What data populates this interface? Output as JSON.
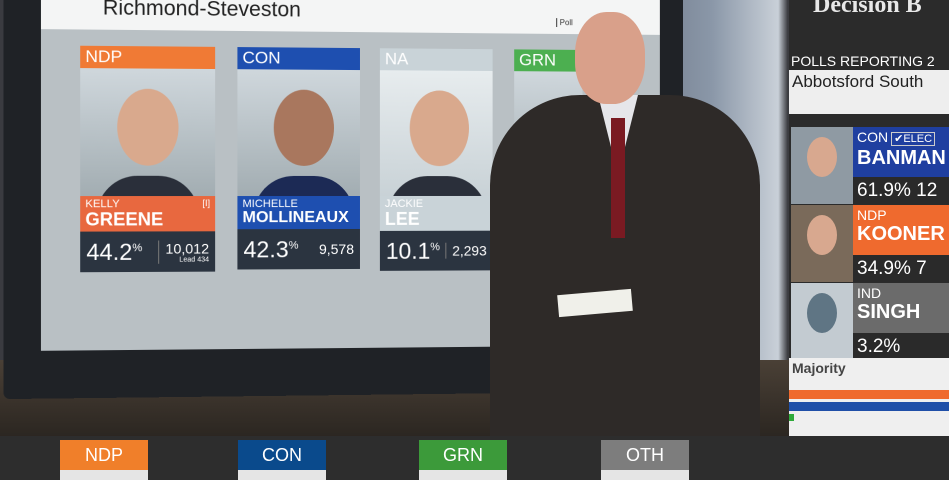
{
  "screen": {
    "riding": "Richmond-Steveston",
    "polls_label": "Poll",
    "candidates": [
      {
        "party": "NDP",
        "first": "KELLY",
        "last": "GREENE",
        "pct": "44.2",
        "votes": "10,012",
        "lead": "Lead 434",
        "incumbent": "[I]",
        "color": "#f07a35",
        "name_color": "#e8683f"
      },
      {
        "party": "CON",
        "first": "MICHELLE",
        "last": "MOLLINEAUX",
        "pct": "42.3",
        "votes": "9,578",
        "color": "#1e4fb0",
        "name_color": "#1e4fb0"
      },
      {
        "party": "NA",
        "first": "JACKIE",
        "last": "LEE",
        "pct": "10.1",
        "votes": "2,293",
        "color": "#c9d3d8",
        "name_color": "#c9d3d8"
      },
      {
        "party": "GRN",
        "color": "#4caf50"
      }
    ],
    "pct_symbol": "%"
  },
  "sidebar": {
    "title": "Decision B",
    "polls_reporting": "POLLS REPORTING   2",
    "riding": "Abbotsford South",
    "candidates": [
      {
        "party": "CON",
        "name": "BANMAN",
        "pct": "61.9%  12",
        "elected": "✔ELEC",
        "color": "#1f3fa0"
      },
      {
        "party": "NDP",
        "name": "KOONER",
        "pct": "34.9%   7",
        "color": "#ef6a2e"
      },
      {
        "party": "IND",
        "name": "SINGH",
        "pct": "3.2%",
        "color": "#6b6b6b"
      }
    ],
    "majority": "Majority",
    "bars": [
      {
        "party": "NDP",
        "color": "#ef6a2e"
      },
      {
        "party": "CON",
        "color": "#1f4fa8"
      },
      {
        "party": "GRN",
        "color": "#2faa3a"
      }
    ]
  },
  "bottom": {
    "tallies": [
      {
        "label": "NDP",
        "color": "#f07f2a"
      },
      {
        "label": "CON",
        "color": "#0a4a8c"
      },
      {
        "label": "GRN",
        "color": "#3c9a3a"
      },
      {
        "label": "OTH",
        "color": "#7d7d7d"
      }
    ]
  }
}
